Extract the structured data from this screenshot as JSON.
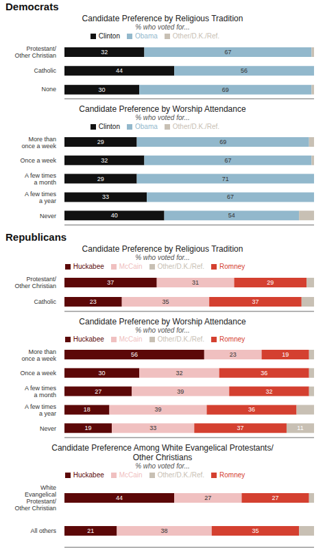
{
  "chart_data": [
    {
      "type": "bar",
      "annotations": [
        "Democrats"
      ],
      "title": "Candidate Preference by Religious Tradition",
      "subtitle": "% who voted for...",
      "orientation": "horizontal",
      "stacked": true,
      "data_labels": true,
      "grid": false,
      "tick_labels": "y",
      "xlim": [
        0,
        100
      ],
      "xticks": [],
      "categories": [
        "Protestant/\nOther Christian",
        "Catholic",
        "None"
      ],
      "series": [
        {
          "name": "Clinton",
          "color": "#111111",
          "values": [
            32,
            44,
            30
          ],
          "value_labels": [
            "32",
            "44",
            "30"
          ]
        },
        {
          "name": "Obama",
          "color": "#92b8cc",
          "values": [
            67,
            56,
            69
          ],
          "value_labels": [
            "67",
            "56",
            "69"
          ]
        },
        {
          "name": "Other/D.K./Ref.",
          "color": "#c8c0b4",
          "values": [
            1,
            0,
            1
          ],
          "value_labels": [
            null,
            null,
            null
          ]
        }
      ]
    },
    {
      "type": "bar",
      "title": "Candidate Preference by Worship Attendance",
      "subtitle": "% who voted for...",
      "orientation": "horizontal",
      "stacked": true,
      "data_labels": true,
      "grid": false,
      "tick_labels": "y",
      "xlim": [
        0,
        100
      ],
      "xticks": [],
      "categories": [
        "More than\nonce a week",
        "Once a week",
        "A few times\na month",
        "A few times\na year",
        "Never"
      ],
      "series": [
        {
          "name": "Clinton",
          "color": "#111111",
          "values": [
            29,
            32,
            29,
            33,
            40
          ],
          "value_labels": [
            "29",
            "32",
            "29",
            "33",
            "40"
          ]
        },
        {
          "name": "Obama",
          "color": "#92b8cc",
          "values": [
            69,
            67,
            71,
            67,
            54
          ],
          "value_labels": [
            "69",
            "67",
            "71",
            "67",
            "54"
          ]
        },
        {
          "name": "Other/D.K./Ref.",
          "color": "#c8c0b4",
          "values": [
            2,
            1,
            0,
            0,
            6
          ],
          "value_labels": [
            null,
            null,
            null,
            null,
            null
          ]
        }
      ]
    },
    {
      "type": "bar",
      "annotations": [
        "Republicans"
      ],
      "title": "Candidate Preference by Religious Tradition",
      "subtitle": "% who voted for...",
      "orientation": "horizontal",
      "stacked": true,
      "data_labels": true,
      "grid": false,
      "tick_labels": "y",
      "xlim": [
        0,
        100
      ],
      "xticks": [],
      "categories": [
        "Protestant/\nOther Christian",
        "Catholic"
      ],
      "series": [
        {
          "name": "Huckabee",
          "color": "#5c0808",
          "values": [
            37,
            23
          ],
          "value_labels": [
            "37",
            "23"
          ]
        },
        {
          "name": "McCain",
          "color": "#f0c0c0",
          "values": [
            31,
            35
          ],
          "value_labels": [
            "31",
            "35"
          ]
        },
        {
          "name": "Romney",
          "color": "#d44030",
          "values": [
            29,
            37
          ],
          "value_labels": [
            "29",
            "37"
          ]
        },
        {
          "name": "Other/D.K./Ref.",
          "color": "#c8c0b4",
          "values": [
            3,
            5
          ],
          "value_labels": [
            null,
            null
          ]
        }
      ]
    },
    {
      "type": "bar",
      "title": "Candidate Preference by Worship Attendance",
      "subtitle": "% who voted for...",
      "orientation": "horizontal",
      "stacked": true,
      "data_labels": true,
      "grid": false,
      "tick_labels": "y",
      "xlim": [
        0,
        100
      ],
      "xticks": [],
      "categories": [
        "More than\nonce a week",
        "Once a week",
        "A few times\na month",
        "A few times\na year",
        "Never"
      ],
      "series": [
        {
          "name": "Huckabee",
          "color": "#5c0808",
          "values": [
            56,
            30,
            27,
            18,
            19
          ],
          "value_labels": [
            "56",
            "30",
            "27",
            "18",
            "19"
          ]
        },
        {
          "name": "McCain",
          "color": "#f0c0c0",
          "values": [
            23,
            32,
            39,
            39,
            33
          ],
          "value_labels": [
            "23",
            "32",
            "39",
            "39",
            "33"
          ]
        },
        {
          "name": "Romney",
          "color": "#d44030",
          "values": [
            19,
            36,
            32,
            36,
            37
          ],
          "value_labels": [
            "19",
            "36",
            "32",
            "36",
            "37"
          ]
        },
        {
          "name": "Other/D.K./Ref.",
          "color": "#c8c0b4",
          "values": [
            2,
            2,
            2,
            7,
            11
          ],
          "value_labels": [
            null,
            null,
            null,
            null,
            "11"
          ]
        }
      ]
    },
    {
      "type": "bar",
      "title": "Candidate Preference Among White Evangelical Protestants/\nOther Christians",
      "subtitle": "% who voted for...",
      "orientation": "horizontal",
      "stacked": true,
      "data_labels": true,
      "grid": false,
      "tick_labels": "y",
      "xlim": [
        0,
        100
      ],
      "xticks": [],
      "categories": [
        "White\nEvangelical\nProtestant/\nOther Christian",
        "All others"
      ],
      "series": [
        {
          "name": "Huckabee",
          "color": "#5c0808",
          "values": [
            44,
            21
          ],
          "value_labels": [
            "44",
            "21"
          ]
        },
        {
          "name": "McCain",
          "color": "#f0c0c0",
          "values": [
            27,
            38
          ],
          "value_labels": [
            "27",
            "38"
          ]
        },
        {
          "name": "Romney",
          "color": "#d44030",
          "values": [
            27,
            35
          ],
          "value_labels": [
            "27",
            "35"
          ]
        },
        {
          "name": "Other/D.K./Ref.",
          "color": "#c8c0b4",
          "values": [
            2,
            6
          ],
          "value_labels": [
            null,
            null
          ]
        }
      ]
    }
  ]
}
